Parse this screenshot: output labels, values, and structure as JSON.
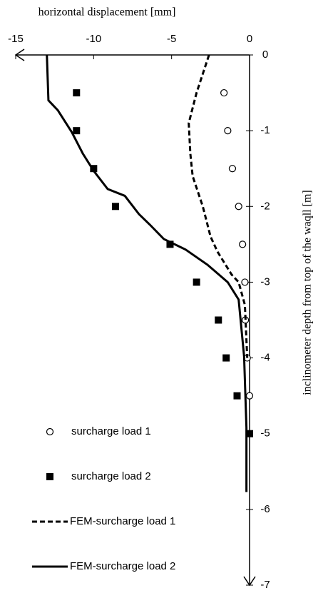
{
  "chart_data": {
    "type": "scatter",
    "xlabel": "horizontal displacement [mm]",
    "ylabel": "inclinometer depth from top of the waqll  [m]",
    "xlim": [
      -15,
      0
    ],
    "xticks": [
      -15,
      -10,
      -5,
      0
    ],
    "ylim": [
      -7,
      0
    ],
    "yticks": [
      0,
      -1,
      -2,
      -3,
      -4,
      -5,
      -6,
      -7
    ],
    "legend": "lower left",
    "series": [
      {
        "name": "surcharge load 1",
        "color": "#000000",
        "marker": "circle-open",
        "x": [
          -1.64,
          -1.4,
          -1.1,
          -0.7,
          -0.45,
          -0.3,
          -0.27,
          -0.15,
          0
        ],
        "y": [
          -0.5,
          -1,
          -1.5,
          -2,
          -2.5,
          -3,
          -3.5,
          -4,
          -4.5
        ]
      },
      {
        "name": "surcharge load 2",
        "color": "#000000",
        "marker": "square",
        "x": [
          -11.1,
          -11.1,
          -10,
          -8.6,
          -5.1,
          -3.4,
          -2.0,
          -1.5,
          -0.8,
          0
        ],
        "y": [
          -0.5,
          -1,
          -1.5,
          -2,
          -2.5,
          -3,
          -3.5,
          -4,
          -4.5,
          -5
        ]
      },
      {
        "name": "FEM-surcharge load 1",
        "color": "#000000",
        "line": "dashed",
        "x": [
          -2.6,
          -3.4,
          -3.9,
          -3.8,
          -3.65,
          -3.0,
          -2.5,
          -2.05,
          -1.6,
          -1.15,
          -0.7,
          -0.3,
          -0.15
        ],
        "y": [
          0,
          -0.5,
          -0.9,
          -1.3,
          -1.6,
          -2.0,
          -2.4,
          -2.6,
          -2.75,
          -2.9,
          -3.0,
          -3.3,
          -4.0
        ]
      },
      {
        "name": "FEM-surcharge load 2",
        "color": "#000000",
        "line": "solid",
        "x": [
          -13.0,
          -12.9,
          -12.3,
          -11.4,
          -10.7,
          -10,
          -9.1,
          -8,
          -7.1,
          -6.4,
          -5.5,
          -4.1,
          -2.7,
          -1.4,
          -0.7,
          -0.35,
          -0.2,
          -0.2
        ],
        "y": [
          0,
          -0.6,
          -0.73,
          -1.02,
          -1.3,
          -1.53,
          -1.77,
          -1.86,
          -2.1,
          -2.24,
          -2.43,
          -2.57,
          -2.77,
          -3.0,
          -3.23,
          -3.98,
          -4.92,
          -5.77
        ]
      }
    ]
  }
}
